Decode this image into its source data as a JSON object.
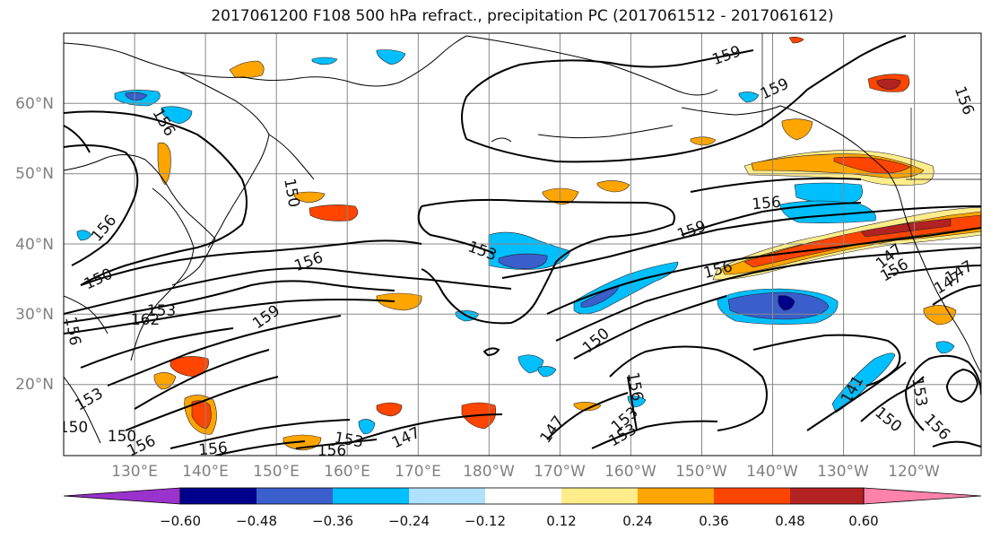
{
  "title": "2017061200 F108 500 hPa refract., precipitation PC (2017061512 - 2017061612)",
  "lat_labels": [
    "60°N",
    "50°N",
    "40°N",
    "30°N",
    "20°N"
  ],
  "lon_labels": [
    "130°E",
    "140°E",
    "150°E",
    "160°E",
    "170°E",
    "180°W",
    "170°W",
    "160°W",
    "150°W",
    "140°W",
    "130°W",
    "120°W"
  ],
  "colorbar": {
    "colors": [
      "#9a32cd",
      "#00008b",
      "#3a5fcd",
      "#00bfff",
      "#b0e2ff",
      "#ffffff",
      "#ffec8b",
      "#ffa500",
      "#ff4500",
      "#b22222",
      "#ff82ab"
    ],
    "tick_labels": [
      "−0.60",
      "−0.48",
      "−0.36",
      "−0.24",
      "−0.12",
      "0.12",
      "0.24",
      "0.36",
      "0.48",
      "0.60"
    ]
  },
  "contour_labels": [
    "159",
    "159",
    "156",
    "156",
    "156",
    "156",
    "153",
    "150",
    "150",
    "156",
    "159",
    "153",
    "156",
    "156",
    "147",
    "150",
    "147",
    "153",
    "153",
    "150",
    "156",
    "147",
    "159",
    "156",
    "153",
    "147",
    "141",
    "150",
    "156",
    "153",
    "150",
    "153",
    "156",
    "162",
    "156",
    "156",
    "147"
  ]
}
